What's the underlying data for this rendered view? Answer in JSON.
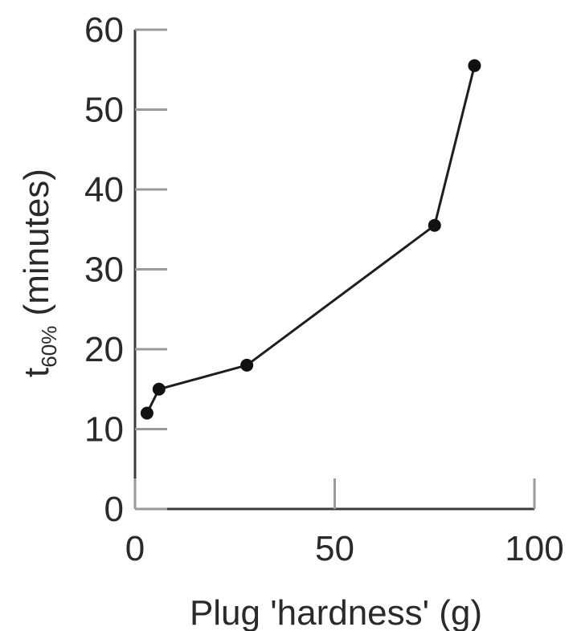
{
  "chart_data": {
    "type": "line",
    "xlabel": "Plug 'hardness' (g)",
    "ylabel_main": "t",
    "ylabel_sub": "60%",
    "ylabel_rest": " (minutes)",
    "xlim": [
      0,
      100
    ],
    "ylim": [
      0,
      60
    ],
    "x_ticks": [
      0,
      50,
      100
    ],
    "x_tick_labels": [
      "0",
      "50",
      "100"
    ],
    "y_ticks": [
      0,
      10,
      20,
      30,
      40,
      50,
      60
    ],
    "y_tick_labels": [
      "0",
      "10",
      "20",
      "30",
      "40",
      "50",
      "60"
    ],
    "grid": false,
    "legend": "none",
    "series": [
      {
        "x": [
          3,
          6,
          28,
          75,
          85
        ],
        "y": [
          12,
          15,
          18,
          35.5,
          55.5
        ]
      }
    ]
  }
}
